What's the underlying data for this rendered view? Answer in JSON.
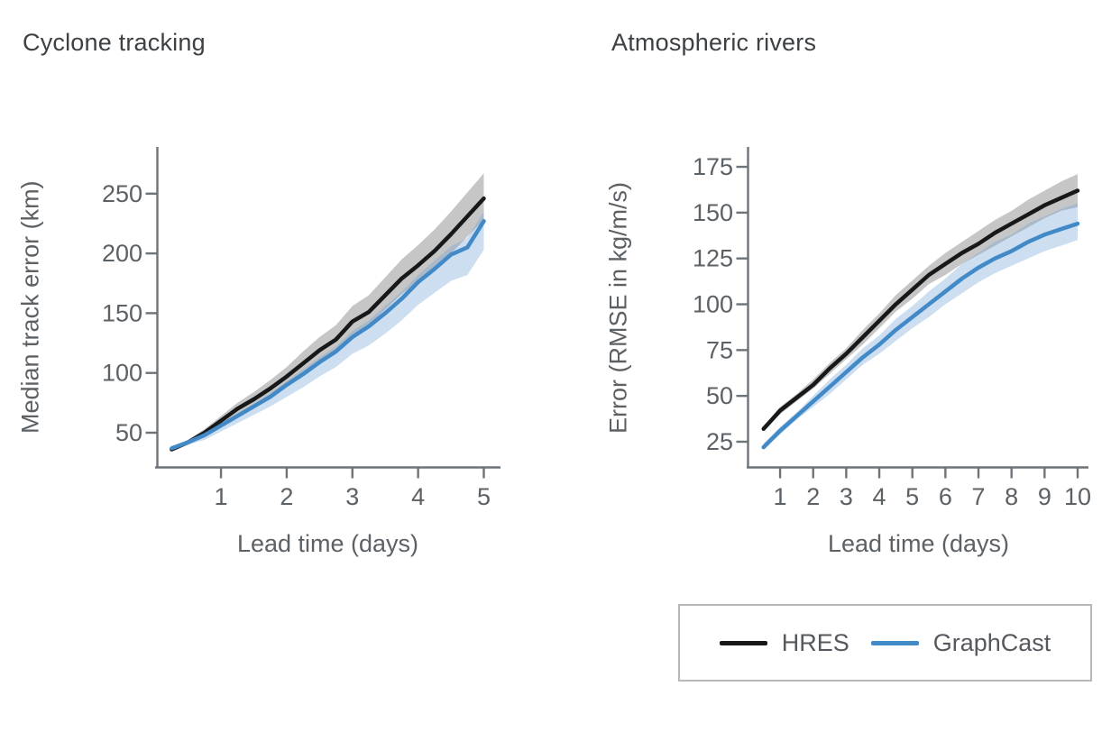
{
  "page": {
    "background": "#ffffff"
  },
  "colors": {
    "title_text": "#3d4144",
    "axis_text": "#5c6166",
    "axis_line": "#6e7378",
    "hres_line": "#17181a",
    "graphcast_line": "#4289c7",
    "hres_band": "rgba(120,120,120,0.42)",
    "graphcast_band": "rgba(110,160,210,0.35)",
    "legend_border": "#b6b9bc"
  },
  "chart_data": [
    {
      "type": "line",
      "title": "Cyclone tracking",
      "xlabel": "Lead time (days)",
      "ylabel": "Median track error (km)",
      "x_ticks": [
        1,
        2,
        3,
        4,
        5
      ],
      "y_ticks": [
        50,
        100,
        150,
        200,
        250
      ],
      "xlim": [
        0,
        5.25
      ],
      "ylim": [
        20,
        290
      ],
      "grid": false,
      "x": [
        0.25,
        0.5,
        0.75,
        1,
        1.25,
        1.5,
        1.75,
        2,
        2.25,
        2.5,
        2.75,
        3,
        3.25,
        3.5,
        3.75,
        4,
        4.25,
        4.5,
        4.75,
        5
      ],
      "series": [
        {
          "name": "HRES",
          "color": "#17181a",
          "band_color": "rgba(120,120,120,0.42)",
          "values": [
            36,
            42,
            50,
            60,
            70,
            78,
            87,
            97,
            108,
            119,
            128,
            143,
            151,
            165,
            179,
            190,
            202,
            216,
            231,
            246
          ],
          "band_upper": [
            37,
            44,
            53,
            64,
            75,
            84,
            94,
            105,
            118,
            130,
            140,
            156,
            165,
            180,
            195,
            207,
            220,
            235,
            251,
            267
          ],
          "band_lower": [
            35,
            40,
            47,
            56,
            66,
            73,
            81,
            90,
            100,
            110,
            118,
            132,
            140,
            153,
            166,
            176,
            187,
            200,
            214,
            228
          ]
        },
        {
          "name": "GraphCast",
          "color": "#4289c7",
          "band_color": "rgba(110,160,210,0.35)",
          "values": [
            37,
            42,
            48,
            56,
            64,
            72,
            80,
            90,
            99,
            109,
            118,
            130,
            139,
            150,
            162,
            176,
            187,
            199,
            205,
            227
          ],
          "band_upper": [
            37,
            43,
            49,
            58,
            66,
            74,
            83,
            93,
            103,
            113,
            122,
            135,
            144,
            156,
            168,
            182,
            194,
            206,
            213,
            235
          ],
          "band_lower": [
            36,
            40,
            44,
            51,
            58,
            65,
            72,
            80,
            88,
            97,
            105,
            116,
            123,
            133,
            144,
            157,
            167,
            177,
            182,
            203
          ]
        }
      ]
    },
    {
      "type": "line",
      "title": "Atmospheric rivers",
      "xlabel": "Lead time (days)",
      "ylabel": "Error (RMSE in kg/m/s)",
      "x_ticks": [
        1,
        2,
        3,
        4,
        5,
        6,
        7,
        8,
        9,
        10
      ],
      "y_ticks": [
        25,
        50,
        75,
        100,
        125,
        150,
        175
      ],
      "xlim": [
        0,
        10.3
      ],
      "ylim": [
        11,
        185
      ],
      "grid": false,
      "x": [
        0.5,
        1,
        1.5,
        2,
        2.5,
        3,
        3.5,
        4,
        4.5,
        5,
        5.5,
        6,
        6.5,
        7,
        7.5,
        8,
        8.5,
        9,
        9.5,
        10
      ],
      "series": [
        {
          "name": "HRES",
          "color": "#17181a",
          "band_color": "rgba(120,120,120,0.42)",
          "values": [
            32,
            42,
            49,
            56,
            65,
            73,
            82,
            91,
            100,
            108,
            116,
            122,
            128,
            133,
            139,
            144,
            149,
            154,
            158,
            162
          ],
          "band_upper": [
            33,
            44,
            51,
            59,
            68,
            76,
            86,
            95,
            105,
            113,
            121,
            128,
            134,
            140,
            146,
            151,
            157,
            162,
            167,
            171
          ],
          "band_lower": [
            31,
            40,
            47,
            54,
            62,
            70,
            78,
            87,
            96,
            103,
            111,
            116,
            122,
            127,
            132,
            137,
            142,
            147,
            151,
            153
          ]
        },
        {
          "name": "GraphCast",
          "color": "#4289c7",
          "band_color": "rgba(110,160,210,0.35)",
          "values": [
            22,
            31,
            39,
            47,
            55,
            63,
            71,
            78,
            86,
            93,
            100,
            107,
            114,
            120,
            125,
            129,
            134,
            138,
            141,
            144
          ],
          "band_upper": [
            24,
            33,
            41,
            50,
            59,
            67,
            76,
            83,
            92,
            99,
            107,
            114,
            122,
            128,
            134,
            138,
            144,
            148,
            152,
            155
          ],
          "band_lower": [
            21,
            29,
            37,
            44,
            51,
            59,
            67,
            73,
            80,
            87,
            93,
            100,
            106,
            112,
            117,
            121,
            125,
            129,
            132,
            135
          ]
        }
      ]
    }
  ],
  "legend": {
    "items": [
      {
        "label": "HRES",
        "color": "#17181a"
      },
      {
        "label": "GraphCast",
        "color": "#4289c7"
      }
    ]
  }
}
